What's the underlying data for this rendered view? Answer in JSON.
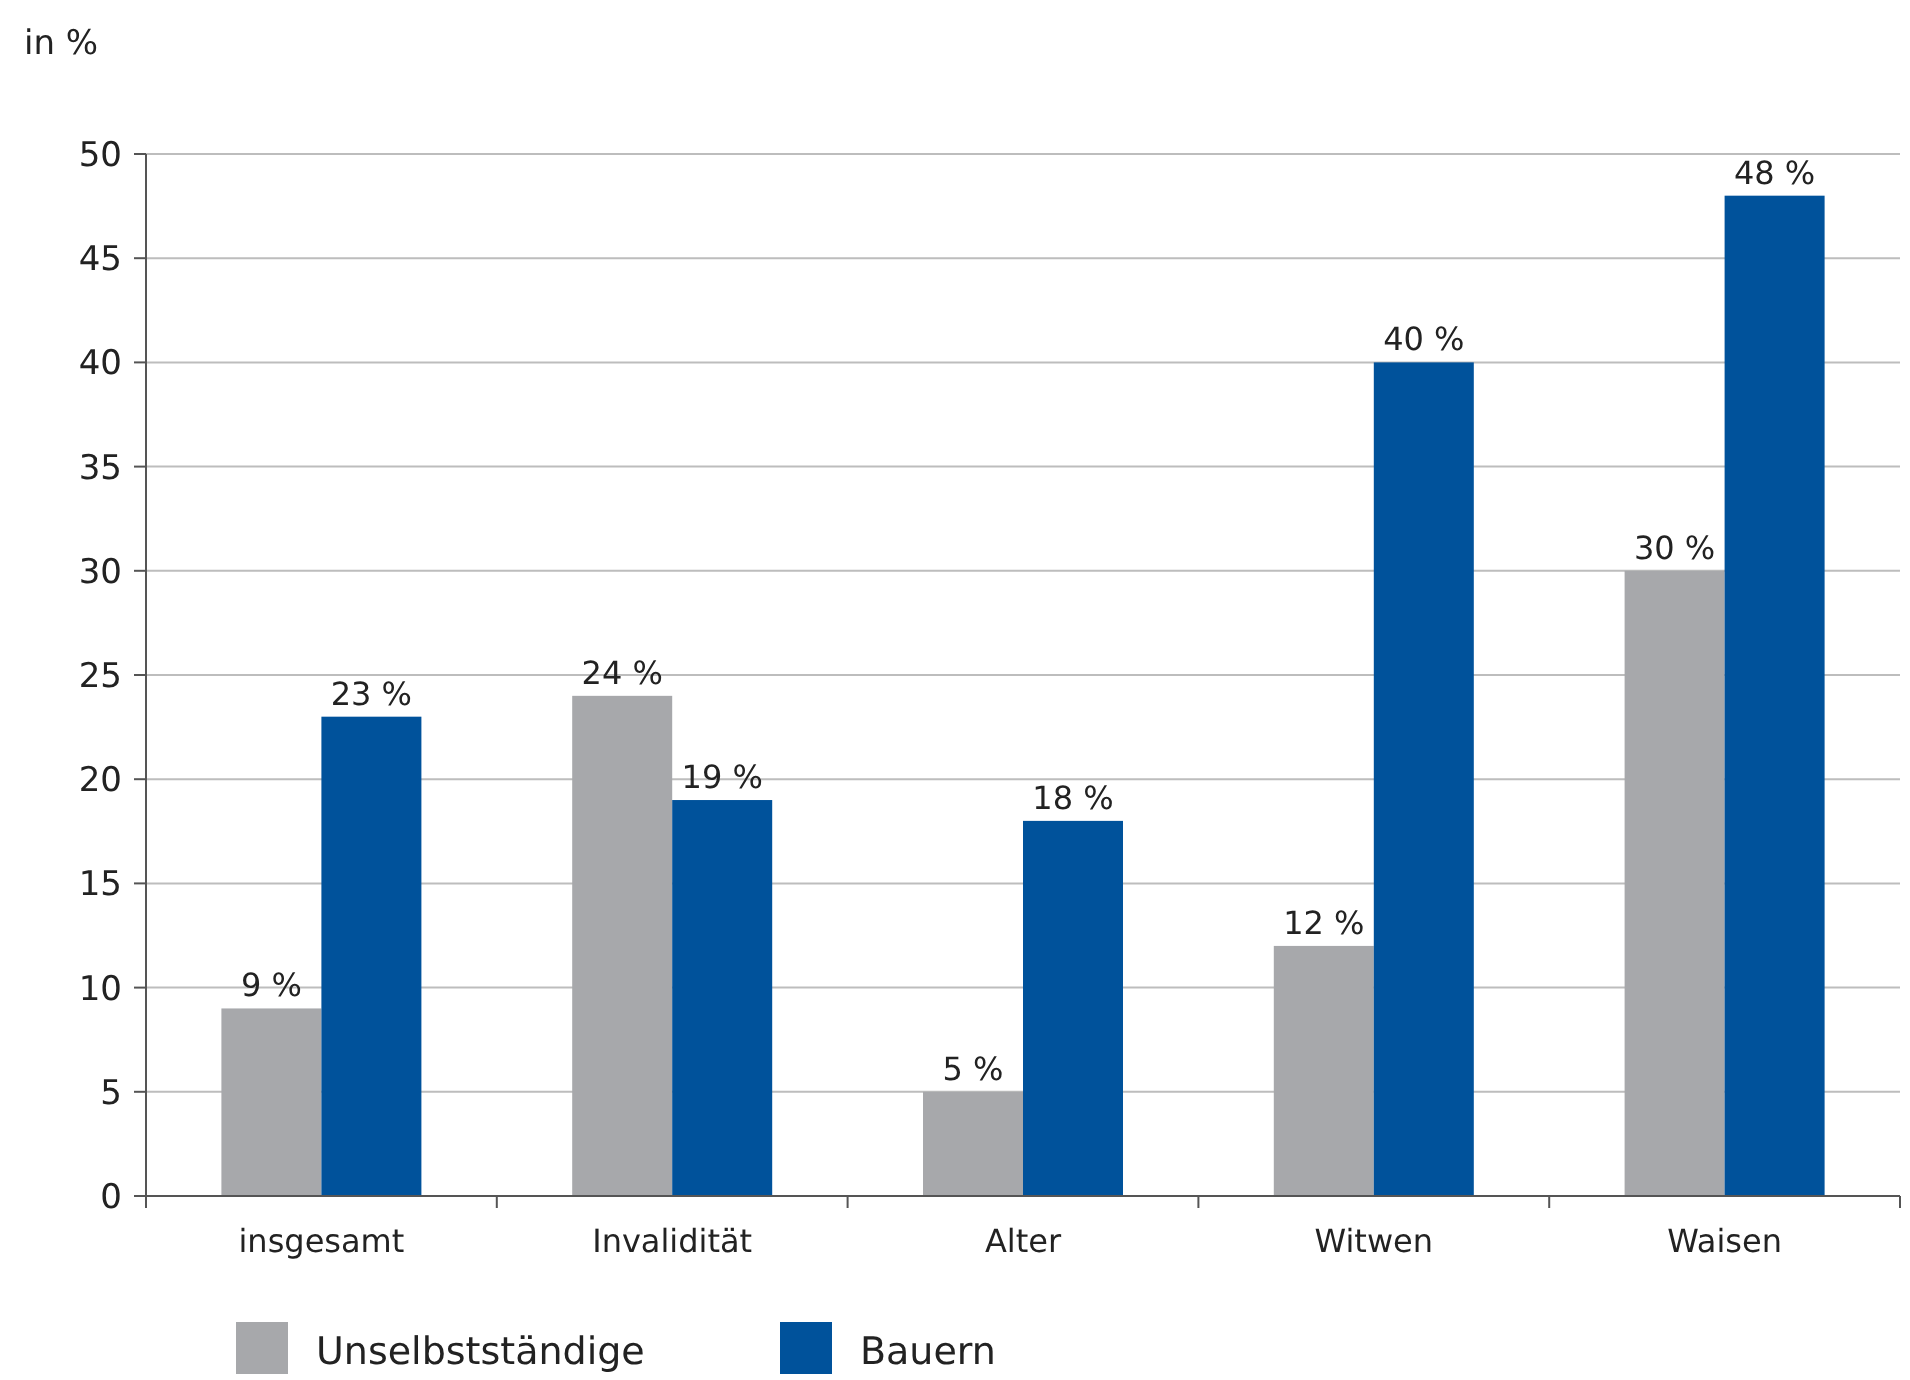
{
  "chart_data": {
    "type": "bar",
    "ylabel": "in %",
    "categories": [
      "insgesamt",
      "Invalidität",
      "Alter",
      "Witwen",
      "Waisen"
    ],
    "series": [
      {
        "name": "Unselbstständige",
        "color": "#a7a8ab",
        "values": [
          9,
          24,
          5,
          12,
          30
        ],
        "value_labels": [
          "9 %",
          "24 %",
          "5 %",
          "12 %",
          "30 %"
        ]
      },
      {
        "name": "Bauern",
        "color": "#00529b",
        "values": [
          23,
          19,
          18,
          40,
          48
        ],
        "value_labels": [
          "23 %",
          "19 %",
          "18 %",
          "40 %",
          "48 %"
        ]
      }
    ],
    "ylim": [
      0,
      50
    ],
    "yticks": [
      0,
      5,
      10,
      15,
      20,
      25,
      30,
      35,
      40,
      45,
      50
    ],
    "grid": "y",
    "legend": "bottom"
  }
}
